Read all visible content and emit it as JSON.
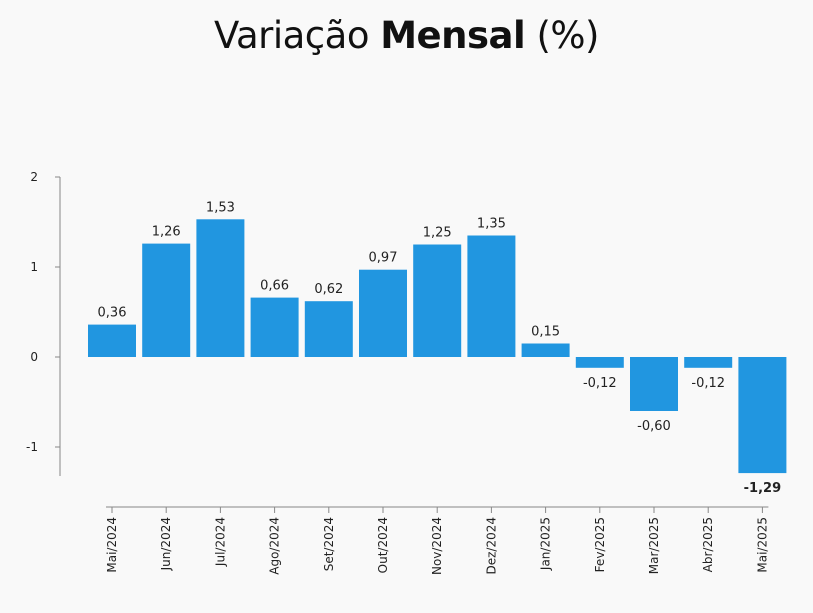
{
  "chart_data": {
    "type": "bar",
    "title_parts": [
      "Variação",
      "Mensal",
      "(%)"
    ],
    "categories": [
      "Mai/2024",
      "Jun/2024",
      "Jul/2024",
      "Ago/2024",
      "Set/2024",
      "Out/2024",
      "Nov/2024",
      "Dez/2024",
      "Jan/2025",
      "Fev/2025",
      "Mar/2025",
      "Abr/2025",
      "Mai/2025"
    ],
    "values": [
      0.36,
      1.26,
      1.53,
      0.66,
      0.62,
      0.97,
      1.25,
      1.35,
      0.15,
      -0.12,
      -0.6,
      -0.12,
      -1.29
    ],
    "value_labels": [
      "0,36",
      "1,26",
      "1,53",
      "0,66",
      "0,62",
      "0,97",
      "1,25",
      "1,35",
      "0,15",
      "-0,12",
      "-0,60",
      "-0,12",
      "-1,29"
    ],
    "emphasized_label_index": 12,
    "ylim": [
      -1.3,
      2
    ],
    "yticks": [
      2,
      1,
      0,
      -1
    ],
    "ytick_labels": [
      "2",
      "1",
      "0",
      "-1"
    ],
    "xlabel": "",
    "ylabel": "",
    "grid": false,
    "bar_color": "#2196e0",
    "axis_color": "#888888"
  }
}
